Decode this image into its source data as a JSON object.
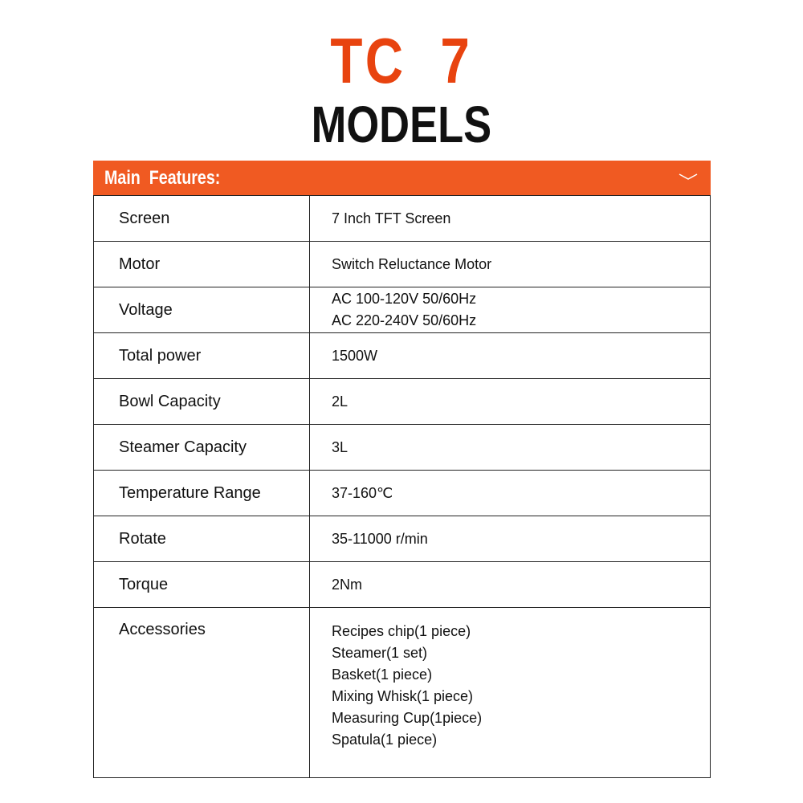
{
  "title": {
    "line1": "TC  7",
    "line2": "MODELS"
  },
  "header": {
    "label": "Main  Features:",
    "icon": "chevron-down-icon",
    "color": "#f05a22"
  },
  "rows": [
    {
      "key": "Screen",
      "values": [
        "7 Inch TFT Screen"
      ]
    },
    {
      "key": "Motor",
      "values": [
        "Switch Reluctance Motor"
      ]
    },
    {
      "key": "Voltage",
      "values": [
        "AC 100-120V 50/60Hz",
        "AC 220-240V 50/60Hz"
      ]
    },
    {
      "key": "Total power",
      "values": [
        "1500W"
      ]
    },
    {
      "key": "Bowl Capacity",
      "values": [
        "2L"
      ]
    },
    {
      "key": "Steamer Capacity",
      "values": [
        "3L"
      ]
    },
    {
      "key": "Temperature Range",
      "values": [
        "37-160℃"
      ]
    },
    {
      "key": "Rotate",
      "values": [
        "35-11000 r/min"
      ]
    },
    {
      "key": "Torque",
      "values": [
        "2Nm"
      ]
    },
    {
      "key": "Accessories",
      "values": [
        "Recipes chip(1 piece)",
        "Steamer(1 set)",
        "Basket(1 piece)",
        "Mixing Whisk(1 piece)",
        "Measuring Cup(1piece)",
        "Spatula(1 piece)"
      ]
    }
  ]
}
